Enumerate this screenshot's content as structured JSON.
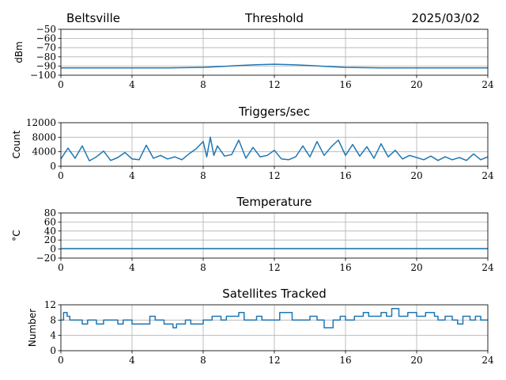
{
  "header": {
    "site": "Beltsville",
    "date": "2025/03/02"
  },
  "colors": {
    "series": "#1f77b4",
    "grid": "#b0b0b0",
    "axes": "#000000"
  },
  "chart_data": [
    {
      "type": "line",
      "title": "Threshold",
      "ylabel": "dBm",
      "xlim": [
        0,
        24
      ],
      "ylim": [
        -100,
        -50
      ],
      "xticks": [
        0,
        4,
        8,
        12,
        16,
        20,
        24
      ],
      "yticks": [
        -100,
        -90,
        -80,
        -70,
        -60,
        -50
      ],
      "grid": true,
      "series": [
        {
          "x": [
            0,
            2,
            4,
            6,
            8,
            9,
            10,
            11,
            12,
            13,
            14,
            15,
            16,
            18,
            20,
            22,
            24
          ],
          "y": [
            -92,
            -92,
            -92,
            -92,
            -91.5,
            -90.5,
            -89.5,
            -88.5,
            -88,
            -88.5,
            -89.5,
            -90.5,
            -91.5,
            -92,
            -92,
            -92,
            -92
          ]
        }
      ]
    },
    {
      "type": "line",
      "title": "Triggers/sec",
      "ylabel": "Count",
      "xlim": [
        0,
        24
      ],
      "ylim": [
        0,
        12000
      ],
      "xticks": [
        0,
        4,
        8,
        12,
        16,
        20,
        24
      ],
      "yticks": [
        0,
        4000,
        8000,
        12000
      ],
      "grid": true,
      "series": [
        {
          "x": [
            0,
            0.4,
            0.8,
            1.2,
            1.6,
            2,
            2.4,
            2.8,
            3.2,
            3.6,
            4,
            4.4,
            4.8,
            5.2,
            5.6,
            6,
            6.4,
            6.8,
            7.2,
            7.6,
            8,
            8.2,
            8.4,
            8.6,
            8.8,
            9.2,
            9.6,
            10,
            10.4,
            10.8,
            11.2,
            11.6,
            12,
            12.4,
            12.8,
            13.2,
            13.6,
            14,
            14.4,
            14.8,
            15.2,
            15.6,
            16,
            16.4,
            16.8,
            17.2,
            17.6,
            18,
            18.4,
            18.8,
            19.2,
            19.6,
            20,
            20.4,
            20.8,
            21.2,
            21.6,
            22,
            22.4,
            22.8,
            23.2,
            23.6,
            24
          ],
          "y": [
            2000,
            5000,
            2200,
            5600,
            1500,
            2600,
            4200,
            1600,
            2400,
            3800,
            2000,
            1800,
            5800,
            2200,
            3000,
            2000,
            2600,
            1800,
            3400,
            4800,
            6800,
            2600,
            8000,
            3000,
            5600,
            2800,
            3200,
            7200,
            2200,
            5200,
            2600,
            3000,
            4400,
            2000,
            1800,
            2600,
            5600,
            2600,
            6800,
            3000,
            5400,
            7200,
            3000,
            6000,
            2800,
            5400,
            2200,
            6200,
            2600,
            4400,
            2000,
            3000,
            2400,
            1800,
            2800,
            1600,
            2600,
            1800,
            2400,
            1600,
            3400,
            1800,
            2600
          ]
        }
      ]
    },
    {
      "type": "line",
      "title": "Temperature",
      "ylabel": "°C",
      "xlim": [
        0,
        24
      ],
      "ylim": [
        -20,
        80
      ],
      "xticks": [
        0,
        4,
        8,
        12,
        16,
        20,
        24
      ],
      "yticks": [
        -20,
        0,
        20,
        40,
        60,
        80
      ],
      "grid": true,
      "series": [
        {
          "x": [
            0,
            24
          ],
          "y": [
            1,
            1
          ]
        }
      ]
    },
    {
      "type": "line",
      "title": "Satellites Tracked",
      "ylabel": "Number",
      "xlim": [
        0,
        24
      ],
      "ylim": [
        0,
        12
      ],
      "xticks": [
        0,
        4,
        8,
        12,
        16,
        20,
        24
      ],
      "yticks": [
        0,
        4,
        8,
        12
      ],
      "grid": true,
      "step": true,
      "series": [
        {
          "x": [
            0,
            0.15,
            0.35,
            0.5,
            1.2,
            1.5,
            2,
            2.4,
            3,
            3.2,
            3.5,
            4,
            4.3,
            5,
            5.3,
            5.8,
            6.3,
            6.5,
            7,
            7.3,
            8,
            8.5,
            9,
            9.3,
            10,
            10.3,
            11,
            11.3,
            12,
            12.3,
            13,
            13.3,
            14,
            14.4,
            14.8,
            15.3,
            15.7,
            16,
            16.5,
            17,
            17.3,
            18,
            18.3,
            18.6,
            19,
            19.5,
            20,
            20.5,
            21,
            21.2,
            21.6,
            22,
            22.3,
            22.6,
            23,
            23.3,
            23.6,
            24
          ],
          "y": [
            8,
            10,
            9,
            8,
            7,
            8,
            7,
            8,
            8,
            7,
            8,
            7,
            7,
            9,
            8,
            7,
            6,
            7,
            8,
            7,
            8,
            9,
            8,
            9,
            10,
            8,
            9,
            8,
            8,
            10,
            8,
            8,
            9,
            8,
            6,
            8,
            9,
            8,
            9,
            10,
            9,
            10,
            9,
            11,
            9,
            10,
            9,
            10,
            9,
            8,
            9,
            8,
            7,
            9,
            8,
            9,
            8,
            8
          ]
        }
      ]
    }
  ]
}
